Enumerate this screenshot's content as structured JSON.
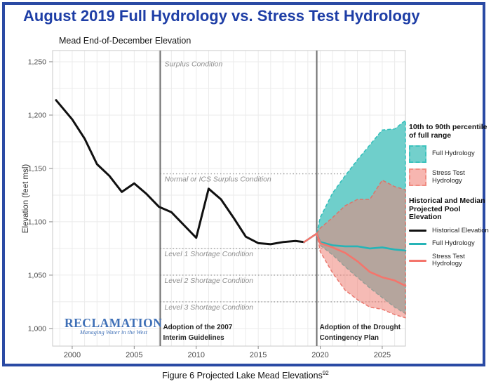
{
  "page": {
    "title": "August 2019 Full Hydrology vs. Stress Test Hydrology",
    "caption": "Figure 6 Projected Lake Mead Elevations",
    "caption_superscript": "92"
  },
  "logo": {
    "name": "RECLAMATION",
    "tagline": "Managing Water in the West"
  },
  "legend": {
    "band_section_title": "10th to 90th percentile of full range",
    "band_items": [
      {
        "label": "Full Hydrology",
        "fill": "#73D0CC",
        "border": "#3CC2BD"
      },
      {
        "label": "Stress Test Hydrology",
        "fill": "#F7B6B0",
        "border": "#F08C82"
      }
    ],
    "line_section_title": "Historical and Median Projected Pool Elevation",
    "line_items": [
      {
        "label": "Historical Elevation",
        "color": "#111111"
      },
      {
        "label": "Full Hydrology",
        "color": "#26B4B7"
      },
      {
        "label": "Stress Test Hydrology",
        "color": "#F4756C"
      }
    ]
  },
  "chart_data": {
    "type": "line",
    "title": "Mead End-of-December Elevation",
    "ylabel": "Elevation (feet msl)",
    "xlabel": "",
    "grid": "on",
    "xlim": [
      1998.42,
      2026.87
    ],
    "ylim": [
      983.5,
      1260.5
    ],
    "xticks": [
      2000,
      2005,
      2010,
      2015,
      2020,
      2025
    ],
    "yticks": [
      1000,
      1050,
      1100,
      1150,
      1200,
      1250
    ],
    "grid_minor_x_step": 1,
    "grid_minor_y_step": 25,
    "thresholds": [
      {
        "label": "Surplus Condition",
        "elevation": null,
        "label_elevation": 1253
      },
      {
        "label": "Normal or ICS Surplus Condition",
        "elevation": 1145
      },
      {
        "label": "Level 1 Shortage Condition",
        "elevation": 1075
      },
      {
        "label": "Level 2 Shortage Condition",
        "elevation": 1050
      },
      {
        "label": "Level 3 Shortage Condition",
        "elevation": 1025
      }
    ],
    "events": [
      {
        "year": 2007.1,
        "lines": [
          "Adoption of the 2007",
          "Interim Guidelines"
        ]
      },
      {
        "year": 2019.72,
        "lines": [
          "Adoption of the Drought",
          "Contingency Plan"
        ]
      }
    ],
    "series": [
      {
        "id": "historical-line",
        "name": "Historical Elevation",
        "type": "line",
        "color": "#101010",
        "width": 3,
        "x": [
          1998.7,
          2000,
          2001,
          2002,
          2003,
          2004,
          2005,
          2006,
          2007,
          2008,
          2009,
          2010,
          2011,
          2012,
          2013,
          2014,
          2015,
          2016,
          2017,
          2018,
          2018.7
        ],
        "y": [
          1214,
          1196,
          1178,
          1154,
          1143,
          1128,
          1136,
          1126,
          1114,
          1109,
          1097,
          1085,
          1131,
          1121,
          1104,
          1086,
          1080,
          1079,
          1081,
          1082,
          1081
        ]
      },
      {
        "id": "full-hydrology-band",
        "name": "Full Hydrology 10th-90th percentile",
        "type": "band",
        "fill": "#6FCFCB",
        "fill_opacity": 1,
        "edge": "#2FBEBA",
        "edge_opacity": 1,
        "x": [
          2019.72,
          2020,
          2021,
          2022,
          2023,
          2024,
          2025,
          2026,
          2026.87
        ],
        "upper": [
          1089,
          1104,
          1127,
          1143,
          1158,
          1172,
          1186,
          1187,
          1195
        ],
        "lower": [
          1089,
          1078,
          1069,
          1058,
          1048,
          1038,
          1029,
          1020,
          1014
        ]
      },
      {
        "id": "stress-test-band",
        "name": "Stress Test Hydrology 10th-90th percentile",
        "type": "band",
        "fill": "#EE8478",
        "fill_opacity": 0.55,
        "edge": "#E8685E",
        "edge_opacity": 0.85,
        "x": [
          2019.72,
          2020,
          2021,
          2022,
          2023,
          2024,
          2025,
          2026,
          2026.87
        ],
        "upper": [
          1089,
          1094,
          1104,
          1115,
          1121,
          1121,
          1139,
          1133,
          1130
        ],
        "lower": [
          1089,
          1072,
          1052,
          1036,
          1027,
          1020,
          1018,
          1013,
          1010
        ]
      },
      {
        "id": "full-hydrology-median-line",
        "name": "Full Hydrology (median)",
        "type": "line",
        "color": "#26B4B7",
        "width": 2.6,
        "x": [
          2018.7,
          2019.72,
          2020,
          2021,
          2022,
          2023,
          2024,
          2025,
          2026,
          2026.87
        ],
        "y": [
          1081,
          1089,
          1081,
          1078,
          1077,
          1077,
          1075,
          1076,
          1074,
          1073
        ]
      },
      {
        "id": "stress-test-median-line",
        "name": "Stress Test Hydrology (median)",
        "type": "line",
        "color": "#F4756C",
        "width": 2.6,
        "x": [
          2018.7,
          2019.72,
          2020,
          2021,
          2022,
          2023,
          2024,
          2025,
          2026,
          2026.87
        ],
        "y": [
          1081,
          1089,
          1080,
          1076,
          1071,
          1063,
          1053,
          1048,
          1045,
          1040
        ]
      }
    ]
  }
}
